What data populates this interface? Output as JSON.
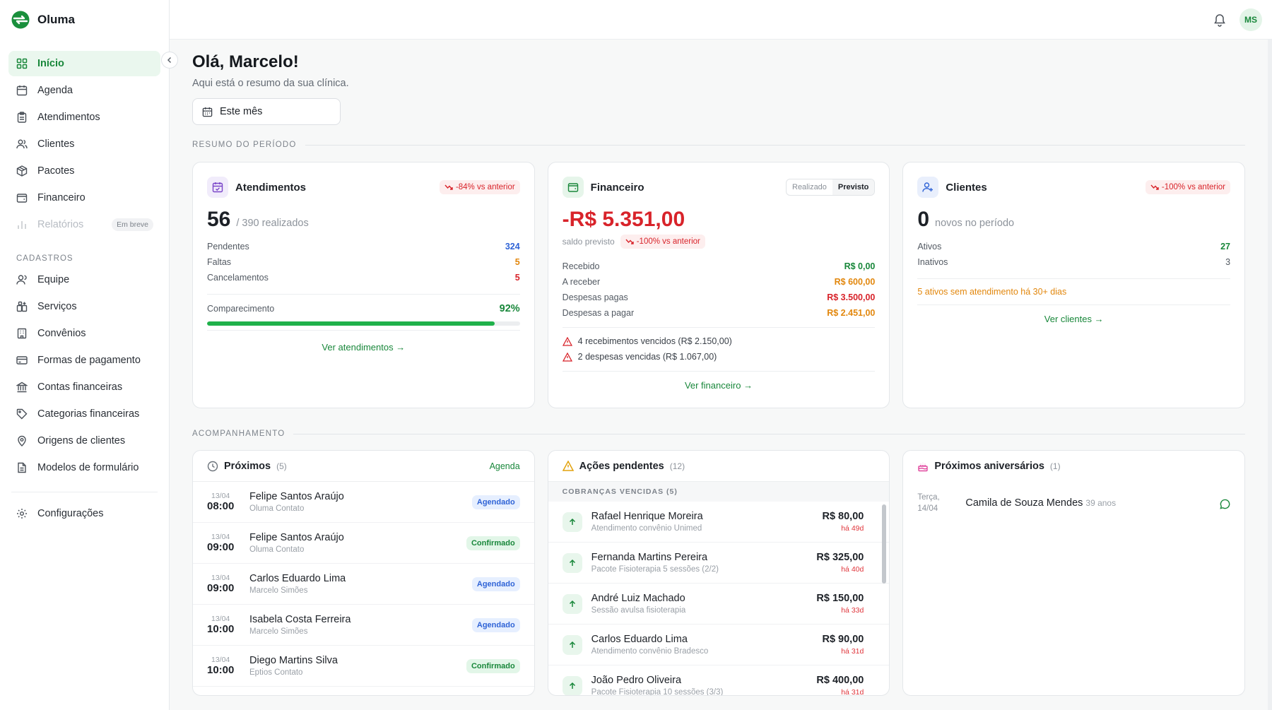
{
  "app": {
    "name": "Oluma"
  },
  "colors": {
    "accent": "#18873a",
    "danger": "#d8232a",
    "warning": "#e2870d",
    "info": "#2f63d6"
  },
  "sidebar": {
    "items": [
      {
        "label": "Início",
        "icon": "grid-icon",
        "active": true
      },
      {
        "label": "Agenda",
        "icon": "calendar-icon"
      },
      {
        "label": "Atendimentos",
        "icon": "clipboard-icon"
      },
      {
        "label": "Clientes",
        "icon": "users-icon"
      },
      {
        "label": "Pacotes",
        "icon": "package-icon"
      },
      {
        "label": "Financeiro",
        "icon": "wallet-icon"
      },
      {
        "label": "Relatórios",
        "icon": "bar-chart-icon",
        "badge": "Em breve",
        "disabled": true
      }
    ],
    "section_label": "CADASTROS",
    "cadastros": [
      {
        "label": "Equipe",
        "icon": "user-icon"
      },
      {
        "label": "Serviços",
        "icon": "services-icon"
      },
      {
        "label": "Convênios",
        "icon": "building-icon"
      },
      {
        "label": "Formas de pagamento",
        "icon": "credit-card-icon"
      },
      {
        "label": "Contas financeiras",
        "icon": "bank-icon"
      },
      {
        "label": "Categorias financeiras",
        "icon": "tag-icon"
      },
      {
        "label": "Origens de clientes",
        "icon": "map-pin-icon"
      },
      {
        "label": "Modelos de formulário",
        "icon": "file-icon"
      }
    ],
    "settings": {
      "label": "Configurações",
      "icon": "gear-icon"
    }
  },
  "topbar": {
    "avatar_initials": "MS"
  },
  "main": {
    "greeting": "Olá, Marcelo!",
    "subtitle": "Aqui está o resumo da sua clínica.",
    "period": "Este mês",
    "section_summary": "RESUMO DO PERÍODO",
    "section_tracking": "ACOMPANHAMENTO"
  },
  "atendimentos": {
    "title": "Atendimentos",
    "trend": "-84% vs anterior",
    "value": "56",
    "value_sub": "/ 390 realizados",
    "stats": [
      {
        "label": "Pendentes",
        "value": "324",
        "color": "#2f63d6"
      },
      {
        "label": "Faltas",
        "value": "5",
        "color": "#e2870d"
      },
      {
        "label": "Cancelamentos",
        "value": "5",
        "color": "#d8232a"
      }
    ],
    "attendance_label": "Comparecimento",
    "attendance_value": "92%",
    "attendance_fraction": 0.92,
    "link": "Ver atendimentos"
  },
  "financeiro": {
    "title": "Financeiro",
    "toggle": [
      "Realizado",
      "Previsto"
    ],
    "toggle_selected": "Previsto",
    "value": "-R$ 5.351,00",
    "value_sub": "saldo previsto",
    "trend": "-100% vs anterior",
    "stats": [
      {
        "label": "Recebido",
        "value": "R$ 0,00",
        "color": "#18873a"
      },
      {
        "label": "A receber",
        "value": "R$ 600,00",
        "color": "#e2870d"
      },
      {
        "label": "Despesas pagas",
        "value": "R$ 3.500,00",
        "color": "#d8232a"
      },
      {
        "label": "Despesas a pagar",
        "value": "R$ 2.451,00",
        "color": "#e2870d"
      }
    ],
    "alerts": [
      "4 recebimentos vencidos (R$ 2.150,00)",
      "2 despesas vencidas (R$ 1.067,00)"
    ],
    "link": "Ver financeiro"
  },
  "clientes": {
    "title": "Clientes",
    "trend": "-100% vs anterior",
    "value": "0",
    "value_sub": "novos no período",
    "stats": [
      {
        "label": "Ativos",
        "value": "27",
        "color": "#18873a"
      },
      {
        "label": "Inativos",
        "value": "3",
        "color": "#525962"
      }
    ],
    "warning": "5 ativos sem atendimento há 30+ dias",
    "link": "Ver clientes"
  },
  "proximos": {
    "title": "Próximos",
    "count": "(5)",
    "link": "Agenda",
    "items": [
      {
        "date": "13/04",
        "time": "08:00",
        "name": "Felipe Santos Araújo",
        "sub": "Oluma Contato",
        "status": "Agendado"
      },
      {
        "date": "13/04",
        "time": "09:00",
        "name": "Felipe Santos Araújo",
        "sub": "Oluma Contato",
        "status": "Confirmado"
      },
      {
        "date": "13/04",
        "time": "09:00",
        "name": "Carlos Eduardo Lima",
        "sub": "Marcelo Simões",
        "status": "Agendado"
      },
      {
        "date": "13/04",
        "time": "10:00",
        "name": "Isabela Costa Ferreira",
        "sub": "Marcelo Simões",
        "status": "Agendado"
      },
      {
        "date": "13/04",
        "time": "10:00",
        "name": "Diego Martins Silva",
        "sub": "Eptios Contato",
        "status": "Confirmado"
      }
    ]
  },
  "acoes": {
    "title": "Ações pendentes",
    "count": "(12)",
    "subhead": "COBRANÇAS VENCIDAS (5)",
    "items": [
      {
        "name": "Rafael Henrique Moreira",
        "sub": "Atendimento convênio Unimed",
        "value": "R$ 80,00",
        "ago": "há 49d"
      },
      {
        "name": "Fernanda Martins Pereira",
        "sub": "Pacote Fisioterapia 5 sessões (2/2)",
        "value": "R$ 325,00",
        "ago": "há 40d"
      },
      {
        "name": "André Luiz Machado",
        "sub": "Sessão avulsa fisioterapia",
        "value": "R$ 150,00",
        "ago": "há 33d"
      },
      {
        "name": "Carlos Eduardo Lima",
        "sub": "Atendimento convênio Bradesco",
        "value": "R$ 90,00",
        "ago": "há 31d"
      },
      {
        "name": "João Pedro Oliveira",
        "sub": "Pacote Fisioterapia 10 sessões (3/3)",
        "value": "R$ 400,00",
        "ago": "há 31d"
      }
    ]
  },
  "aniversarios": {
    "title": "Próximos aniversários",
    "count": "(1)",
    "items": [
      {
        "day": "Terça,",
        "date": "14/04",
        "name": "Camila de Souza Mendes",
        "age": "39 anos"
      }
    ]
  }
}
